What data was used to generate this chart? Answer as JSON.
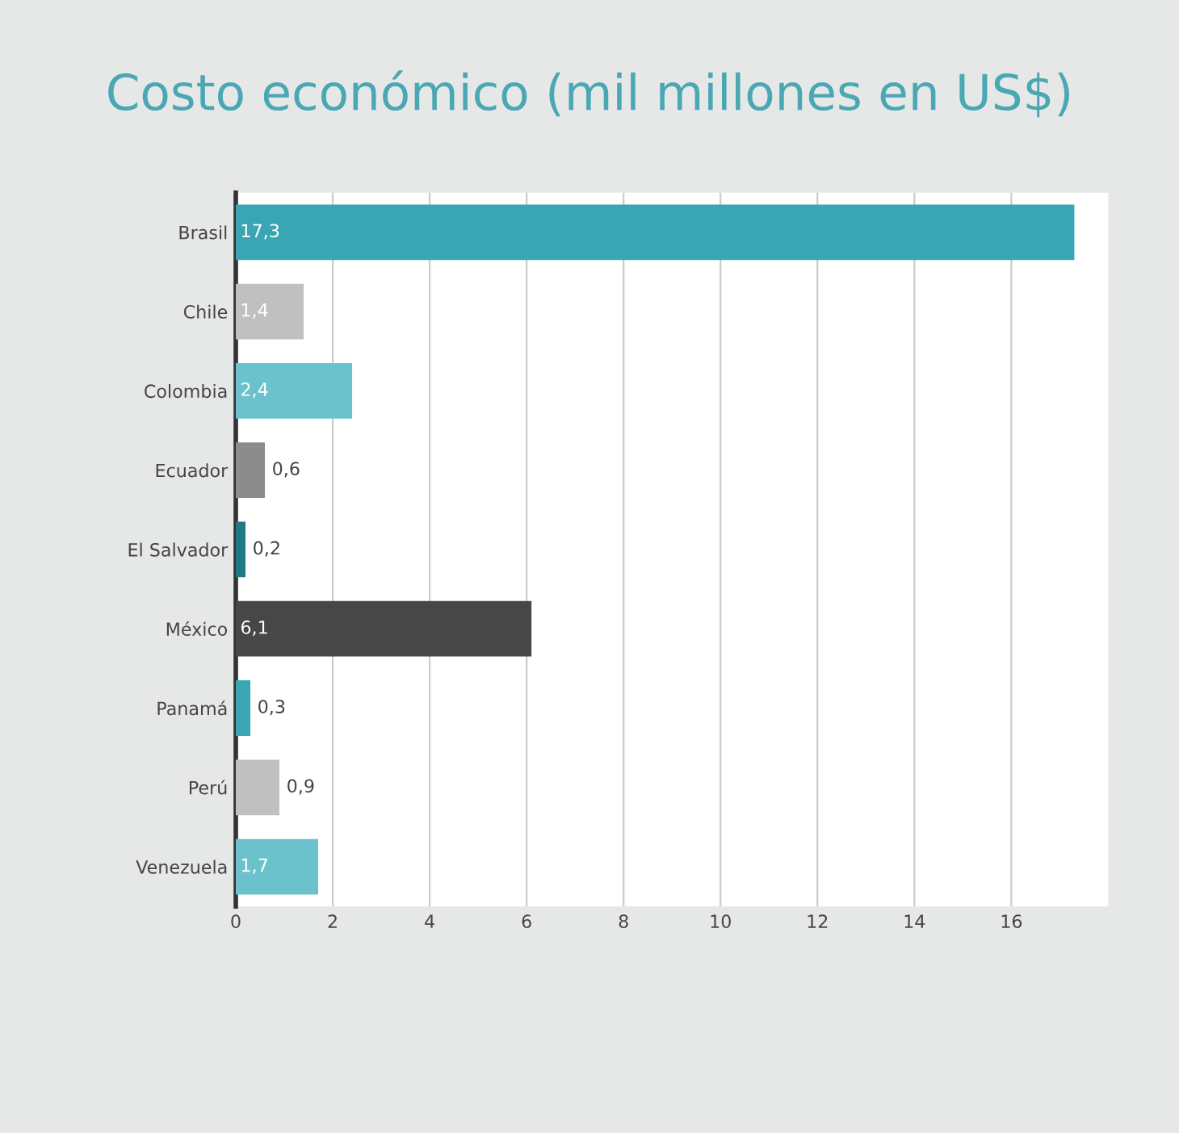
{
  "chart_data": {
    "type": "bar",
    "orientation": "horizontal",
    "title": "Costo económico (mil millones en US$)",
    "categories": [
      "Brasil",
      "Chile",
      "Colombia",
      "Ecuador",
      "El Salvador",
      "México",
      "Panamá",
      "Perú",
      "Venezuela"
    ],
    "values": [
      17.3,
      1.4,
      2.4,
      0.6,
      0.2,
      6.1,
      0.3,
      0.9,
      1.7
    ],
    "value_labels": [
      "17,3",
      "1,4",
      "2,4",
      "0,6",
      "0,2",
      "6,1",
      "0,3",
      "0,9",
      "1,7"
    ],
    "colors": [
      "#3aa6b4",
      "#c0c0c0",
      "#6cc2cc",
      "#8c8c8c",
      "#1f7a85",
      "#474747",
      "#3aa6b4",
      "#c0c0c0",
      "#6cc2cc"
    ],
    "xlim": [
      0,
      18
    ],
    "xticks": [
      0,
      2,
      4,
      6,
      8,
      10,
      12,
      14,
      16
    ],
    "grid": "x"
  }
}
